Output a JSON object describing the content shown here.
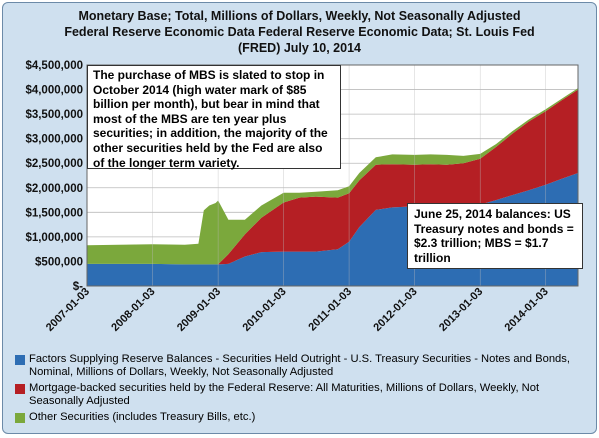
{
  "title_lines": [
    "Monetary Base; Total, Millions of Dollars, Weekly, Not Seasonally Adjusted",
    "Federal Reserve Economic Data Federal Reserve Economic Data; St. Louis Fed",
    "(FRED) July 10, 2014"
  ],
  "annotations": {
    "mbs_note": "The purchase of MBS is slated to stop in October 2014 (high water mark of $85 billion per month), but bear in mind that most of the MBS are ten year plus securities; in addition, the majority of the other securities held by the Fed are also of the longer term variety.",
    "balances_note": "June 25, 2014 balances: US Treasury notes and bonds = $2.3 trillion; MBS = $1.7 trillion"
  },
  "colors": {
    "treasury": "#2d6db3",
    "mbs": "#b51f24",
    "other": "#7ba83c",
    "plot_bg": "#ffffff",
    "frame_bg": "#cfe0ef",
    "grid": "#bbbbbb"
  },
  "chart_data": {
    "type": "area",
    "stacked": true,
    "title": "Monetary Base; Total, Millions of Dollars, Weekly, Not Seasonally Adjusted",
    "xlabel": "",
    "ylabel": "",
    "xlim": [
      "2007-01-03",
      "2014-07-02"
    ],
    "ylim": [
      0,
      4500000
    ],
    "grid": true,
    "legend_position": "bottom",
    "x_ticks": [
      "2007-01-03",
      "2008-01-03",
      "2009-01-03",
      "2010-01-03",
      "2011-01-03",
      "2012-01-03",
      "2013-01-03",
      "2014-01-03"
    ],
    "y_ticks": [
      "$-",
      "$500,000",
      "$1,000,000",
      "$1,500,000",
      "$2,000,000",
      "$2,500,000",
      "$3,000,000",
      "$3,500,000",
      "$4,000,000",
      "$4,500,000"
    ],
    "y_tick_values": [
      0,
      500000,
      1000000,
      1500000,
      2000000,
      2500000,
      3000000,
      3500000,
      4000000,
      4500000
    ],
    "x": [
      "2007-01-03",
      "2007-07-01",
      "2008-01-03",
      "2008-07-01",
      "2008-09-15",
      "2008-10-15",
      "2008-11-15",
      "2008-12-20",
      "2009-01-03",
      "2009-03-01",
      "2009-06-01",
      "2009-09-01",
      "2010-01-03",
      "2010-04-01",
      "2010-07-01",
      "2010-11-01",
      "2011-01-03",
      "2011-03-01",
      "2011-06-01",
      "2011-09-01",
      "2012-01-03",
      "2012-04-01",
      "2012-07-01",
      "2012-10-01",
      "2013-01-03",
      "2013-04-01",
      "2013-07-01",
      "2013-10-01",
      "2014-01-03",
      "2014-04-01",
      "2014-07-02"
    ],
    "series": [
      {
        "name": "Factors Supplying Reserve Balances - Securities Held Outright - U.S. Treasury Securities - Notes and Bonds, Nominal, Millions of Dollars, Weekly, Not Seasonally Adjusted",
        "values": [
          450000,
          450000,
          450000,
          440000,
          440000,
          440000,
          440000,
          440000,
          440000,
          450000,
          600000,
          690000,
          700000,
          700000,
          700000,
          750000,
          900000,
          1200000,
          1550000,
          1600000,
          1620000,
          1630000,
          1630000,
          1640000,
          1660000,
          1750000,
          1850000,
          1950000,
          2060000,
          2180000,
          2300000
        ]
      },
      {
        "name": "Mortgage-backed securities held by the Federal Reserve: All Maturities, Millions of Dollars, Weekly, Not Seasonally Adjusted",
        "values": [
          0,
          0,
          0,
          0,
          0,
          0,
          0,
          0,
          0,
          200000,
          450000,
          700000,
          1000000,
          1100000,
          1120000,
          1050000,
          990000,
          950000,
          920000,
          880000,
          850000,
          850000,
          840000,
          860000,
          930000,
          1080000,
          1250000,
          1400000,
          1500000,
          1600000,
          1700000
        ]
      },
      {
        "name": "Other Securities (includes Treasury Bills, etc.)",
        "values": [
          380000,
          390000,
          400000,
          400000,
          420000,
          1100000,
          1200000,
          1250000,
          1300000,
          700000,
          300000,
          250000,
          200000,
          100000,
          100000,
          150000,
          140000,
          150000,
          150000,
          200000,
          200000,
          200000,
          200000,
          150000,
          100000,
          60000,
          50000,
          40000,
          40000,
          30000,
          30000
        ]
      }
    ]
  },
  "legend": [
    {
      "label": "Factors Supplying Reserve Balances - Securities Held Outright - U.S. Treasury Securities - Notes and Bonds, Nominal, Millions of Dollars, Weekly, Not Seasonally Adjusted",
      "color": "#2d6db3"
    },
    {
      "label": "Mortgage-backed securities held by the Federal Reserve: All Maturities, Millions of Dollars, Weekly, Not Seasonally Adjusted",
      "color": "#b51f24"
    },
    {
      "label": "Other Securities (includes Treasury Bills, etc.)",
      "color": "#7ba83c"
    }
  ]
}
